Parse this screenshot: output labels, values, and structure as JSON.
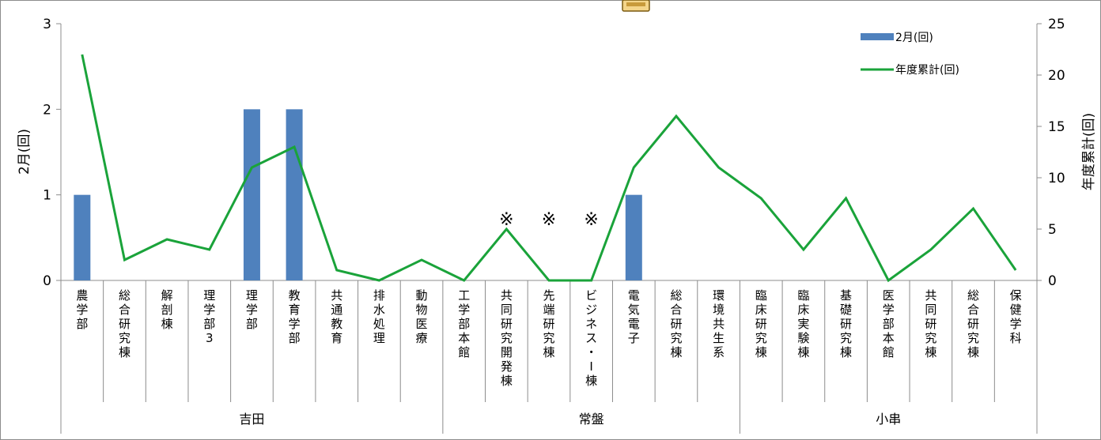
{
  "chart_data": {
    "type": "bar+line",
    "categories": [
      "農学部",
      "総合研究棟",
      "解剖棟",
      "理学部3",
      "理学部",
      "教育学部",
      "共通教育",
      "排水処理",
      "動物医療",
      "工学部本館",
      "共同研究開発棟",
      "先端研究棟",
      "ビジネス・I棟",
      "電気電子",
      "総合研究棟",
      "環境共生系",
      "臨床研究棟",
      "臨床実験棟",
      "基礎研究棟",
      "医学部本館",
      "共同研究棟",
      "総合研究棟",
      "保健学科"
    ],
    "groups": [
      {
        "name": "吉田",
        "start": 0,
        "end": 8
      },
      {
        "name": "常盤",
        "start": 9,
        "end": 15
      },
      {
        "name": "小串",
        "start": 16,
        "end": 22
      }
    ],
    "series": [
      {
        "name": "2月(回)",
        "type": "bar",
        "axis": "left",
        "color": "#4f81bd",
        "values": [
          1,
          0,
          0,
          0,
          2,
          2,
          0,
          0,
          0,
          0,
          0,
          0,
          0,
          1,
          0,
          0,
          0,
          0,
          0,
          0,
          0,
          0,
          0
        ]
      },
      {
        "name": "年度累計(回)",
        "type": "line",
        "axis": "right",
        "color": "#1aa33a",
        "values": [
          22,
          2,
          4,
          3,
          11,
          13,
          1,
          0,
          2,
          0,
          5,
          0,
          0,
          11,
          16,
          11,
          8,
          3,
          8,
          0,
          3,
          7,
          1
        ]
      }
    ],
    "annotations": [
      {
        "text": "※",
        "category_index": 10
      },
      {
        "text": "※",
        "category_index": 11
      },
      {
        "text": "※",
        "category_index": 12
      }
    ],
    "ylabel": "2月(回)",
    "ylabel_right": "年度累計(回)",
    "ylim": [
      0,
      3
    ],
    "yticks": [
      "0",
      "1",
      "2",
      "3"
    ],
    "ylim_right": [
      0,
      25
    ],
    "yticks_right": [
      "0",
      "5",
      "10",
      "15",
      "20",
      "25"
    ],
    "legend_position": "top-right",
    "grid": false
  }
}
